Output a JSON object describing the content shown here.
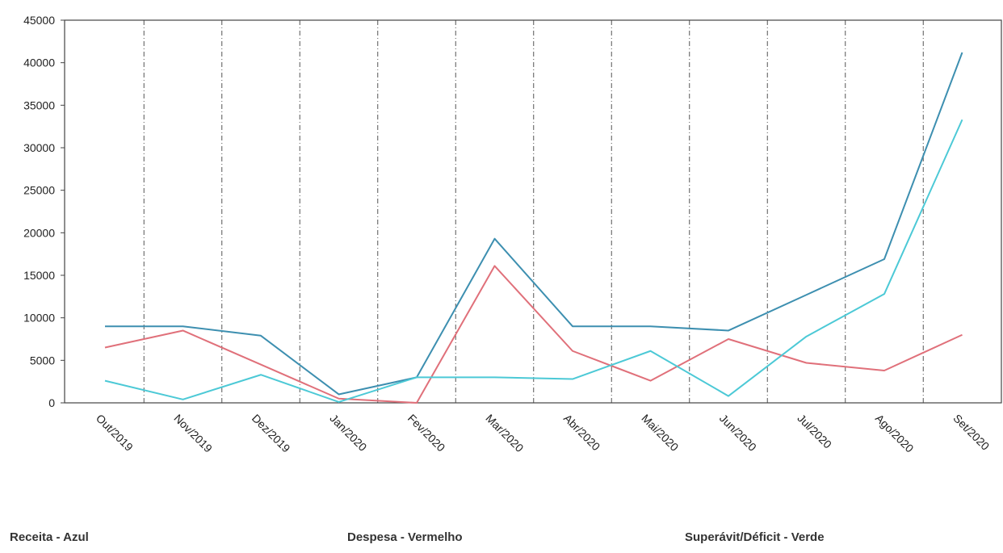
{
  "chart_data": {
    "type": "line",
    "categories": [
      "Out/2019",
      "Nov/2019",
      "Dez/2019",
      "Jan/2020",
      "Fev/2020",
      "Mar/2020",
      "Abr/2020",
      "Mai/2020",
      "Jun/2020",
      "Jul/2020",
      "Ago/2020",
      "Set/2020"
    ],
    "ylim": [
      0,
      45000
    ],
    "yticks": [
      0,
      5000,
      10000,
      15000,
      20000,
      25000,
      30000,
      35000,
      40000,
      45000
    ],
    "grid": "vertical dashed",
    "series": [
      {
        "color": "#3d8fb0",
        "values": [
          9000,
          9000,
          7900,
          1000,
          3000,
          19300,
          9000,
          9000,
          8500,
          12700,
          16900,
          41200
        ]
      },
      {
        "color": "#e0707a",
        "values": [
          6500,
          8500,
          4500,
          500,
          0,
          16100,
          6100,
          2600,
          7500,
          4700,
          3800,
          8000
        ]
      },
      {
        "color": "#4cc9d6",
        "values": [
          2600,
          400,
          3300,
          100,
          3000,
          3000,
          2800,
          6100,
          800,
          7800,
          12800,
          33300
        ]
      }
    ]
  },
  "legend": {
    "receita": "Receita - Azul",
    "despesa": "Despesa - Vermelho",
    "superavit": "Superávit/Déficit - Verde"
  }
}
